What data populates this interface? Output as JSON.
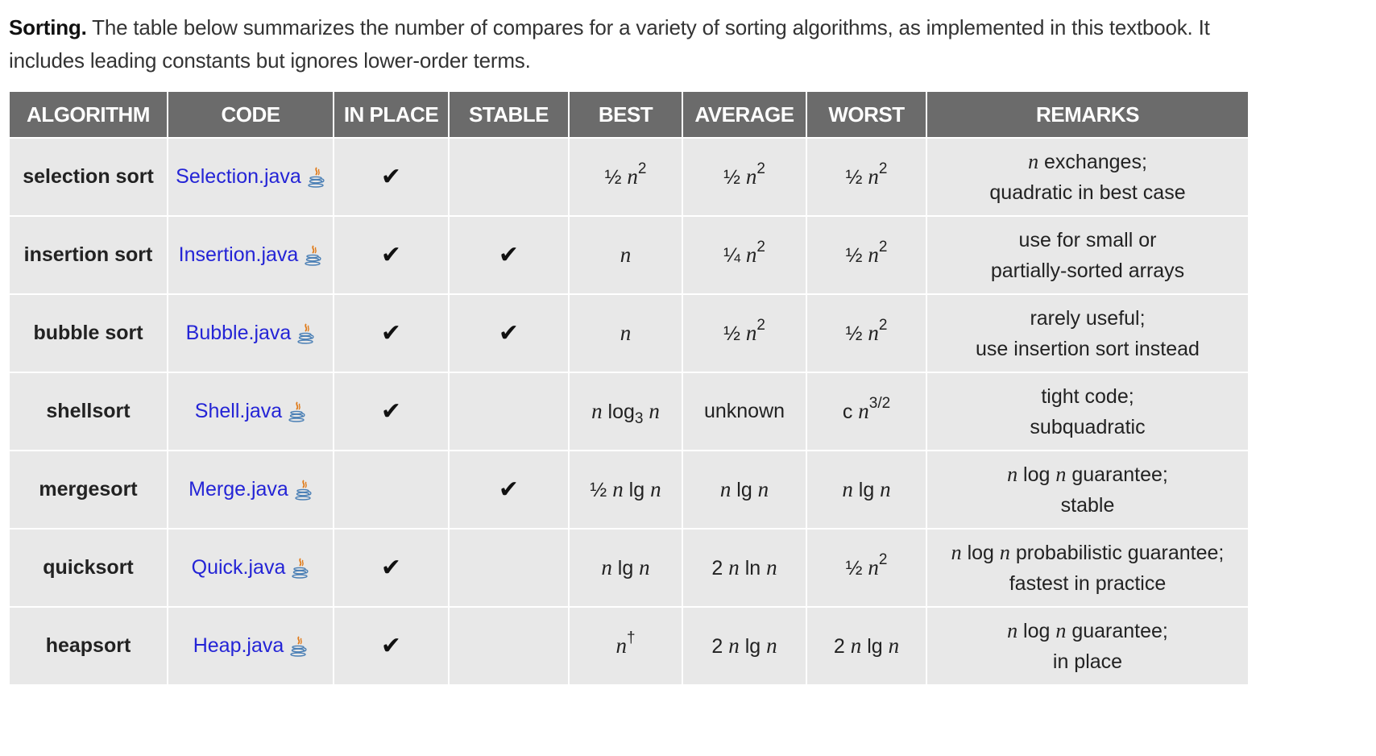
{
  "intro": {
    "heading": "Sorting.",
    "text": " The table below summarizes the number of compares for a variety of sorting algorithms, as implemented in this textbook. It includes leading constants but ignores lower-order terms."
  },
  "table": {
    "headers": {
      "algorithm": "ALGORITHM",
      "code": "CODE",
      "in_place": "IN PLACE",
      "stable": "STABLE",
      "best": "BEST",
      "average": "AVERAGE",
      "worst": "WORST",
      "remarks": "REMARKS"
    },
    "check_mark": "✔",
    "link_color": "#2424d6",
    "header_bg": "#6b6b6b",
    "row_bg": "#e8e8e8",
    "rows": [
      {
        "algorithm": "selection sort",
        "code": "Selection.java",
        "in_place": true,
        "stable": false,
        "best": [
          [
            "t",
            "½ "
          ],
          [
            "i",
            "n"
          ],
          [
            "sup",
            "2"
          ]
        ],
        "average": [
          [
            "t",
            "½ "
          ],
          [
            "i",
            "n"
          ],
          [
            "sup",
            "2"
          ]
        ],
        "worst": [
          [
            "t",
            "½ "
          ],
          [
            "i",
            "n"
          ],
          [
            "sup",
            "2"
          ]
        ],
        "remarks": [
          [
            [
              "i",
              "n"
            ],
            [
              "t",
              " exchanges;"
            ]
          ],
          [
            [
              "t",
              "quadratic in best case"
            ]
          ]
        ]
      },
      {
        "algorithm": "insertion sort",
        "code": "Insertion.java",
        "in_place": true,
        "stable": true,
        "best": [
          [
            "i",
            "n"
          ]
        ],
        "average": [
          [
            "t",
            "¼ "
          ],
          [
            "i",
            "n"
          ],
          [
            "sup",
            "2"
          ]
        ],
        "worst": [
          [
            "t",
            "½ "
          ],
          [
            "i",
            "n"
          ],
          [
            "sup",
            "2"
          ]
        ],
        "remarks": [
          [
            [
              "t",
              "use for small or"
            ]
          ],
          [
            [
              "t",
              "partially-sorted arrays"
            ]
          ]
        ]
      },
      {
        "algorithm": "bubble sort",
        "code": "Bubble.java",
        "in_place": true,
        "stable": true,
        "best": [
          [
            "i",
            "n"
          ]
        ],
        "average": [
          [
            "t",
            "½ "
          ],
          [
            "i",
            "n"
          ],
          [
            "sup",
            "2"
          ]
        ],
        "worst": [
          [
            "t",
            "½ "
          ],
          [
            "i",
            "n"
          ],
          [
            "sup",
            "2"
          ]
        ],
        "remarks": [
          [
            [
              "t",
              "rarely useful;"
            ]
          ],
          [
            [
              "t",
              "use insertion sort instead"
            ]
          ]
        ]
      },
      {
        "algorithm": "shellsort",
        "code": "Shell.java",
        "in_place": true,
        "stable": false,
        "best": [
          [
            "i",
            "n"
          ],
          [
            "t",
            " log"
          ],
          [
            "sub",
            "3"
          ],
          [
            "t",
            " "
          ],
          [
            "i",
            "n"
          ]
        ],
        "average": [
          [
            "t",
            "unknown"
          ]
        ],
        "worst": [
          [
            "t",
            "c "
          ],
          [
            "i",
            "n"
          ],
          [
            "sup",
            "3/2"
          ]
        ],
        "remarks": [
          [
            [
              "t",
              "tight code;"
            ]
          ],
          [
            [
              "t",
              "subquadratic"
            ]
          ]
        ]
      },
      {
        "algorithm": "mergesort",
        "code": "Merge.java",
        "in_place": false,
        "stable": true,
        "best": [
          [
            "t",
            "½ "
          ],
          [
            "i",
            "n"
          ],
          [
            "t",
            " lg "
          ],
          [
            "i",
            "n"
          ]
        ],
        "average": [
          [
            "i",
            "n"
          ],
          [
            "t",
            " lg "
          ],
          [
            "i",
            "n"
          ]
        ],
        "worst": [
          [
            "i",
            "n"
          ],
          [
            "t",
            " lg "
          ],
          [
            "i",
            "n"
          ]
        ],
        "remarks": [
          [
            [
              "i",
              "n"
            ],
            [
              "t",
              " log "
            ],
            [
              "i",
              "n"
            ],
            [
              "t",
              " guarantee;"
            ]
          ],
          [
            [
              "t",
              "stable"
            ]
          ]
        ]
      },
      {
        "algorithm": "quicksort",
        "code": "Quick.java",
        "in_place": true,
        "stable": false,
        "best": [
          [
            "i",
            "n"
          ],
          [
            "t",
            " lg "
          ],
          [
            "i",
            "n"
          ]
        ],
        "average": [
          [
            "t",
            "2 "
          ],
          [
            "i",
            "n"
          ],
          [
            "t",
            " ln "
          ],
          [
            "i",
            "n"
          ]
        ],
        "worst": [
          [
            "t",
            "½ "
          ],
          [
            "i",
            "n"
          ],
          [
            "sup",
            "2"
          ]
        ],
        "remarks": [
          [
            [
              "i",
              "n"
            ],
            [
              "t",
              " log "
            ],
            [
              "i",
              "n"
            ],
            [
              "t",
              " probabilistic guarantee;"
            ]
          ],
          [
            [
              "t",
              "fastest in practice"
            ]
          ]
        ]
      },
      {
        "algorithm": "heapsort",
        "code": "Heap.java",
        "in_place": true,
        "stable": false,
        "best": [
          [
            "i",
            "n"
          ],
          [
            "sup",
            "†"
          ]
        ],
        "average": [
          [
            "t",
            "2 "
          ],
          [
            "i",
            "n"
          ],
          [
            "t",
            " lg "
          ],
          [
            "i",
            "n"
          ]
        ],
        "worst": [
          [
            "t",
            "2 "
          ],
          [
            "i",
            "n"
          ],
          [
            "t",
            " lg "
          ],
          [
            "i",
            "n"
          ]
        ],
        "remarks": [
          [
            [
              "i",
              "n"
            ],
            [
              "t",
              " log "
            ],
            [
              "i",
              "n"
            ],
            [
              "t",
              " guarantee;"
            ]
          ],
          [
            [
              "t",
              "in place"
            ]
          ]
        ]
      }
    ]
  }
}
